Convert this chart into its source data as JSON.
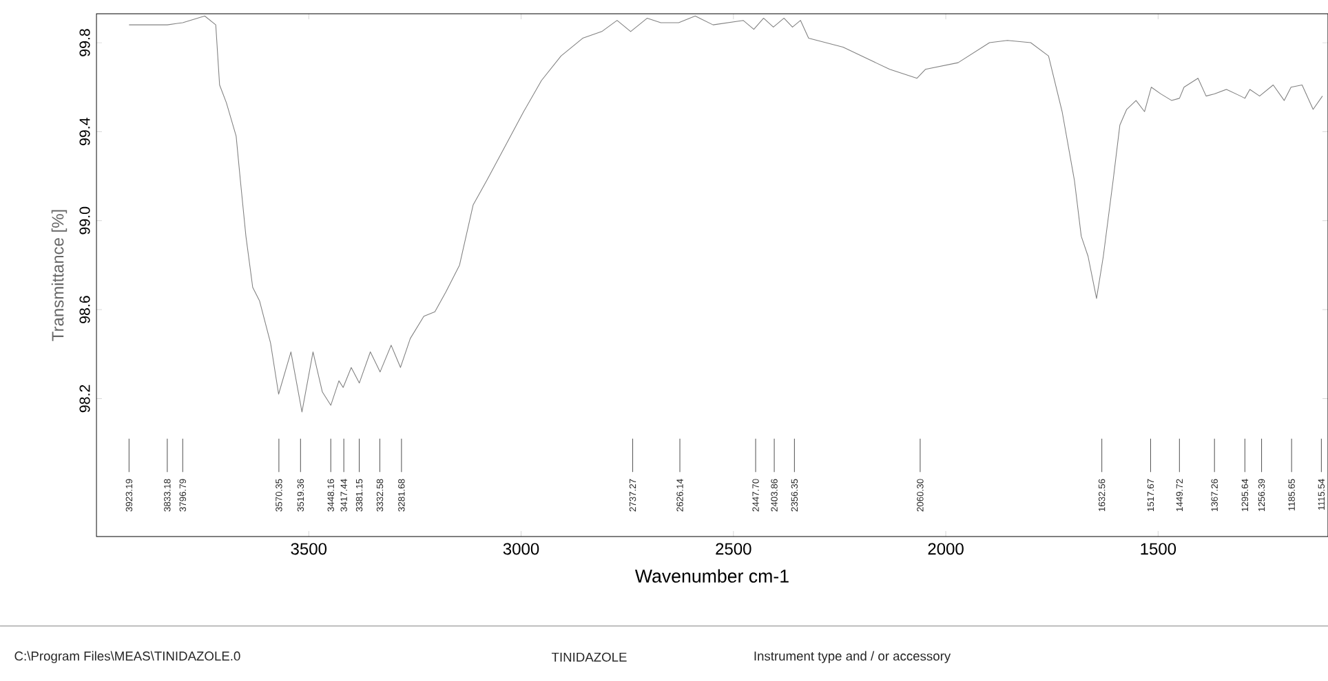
{
  "chart_data": {
    "type": "line",
    "xlabel": "Wavenumber cm-1",
    "ylabel": "Transmittance [%]",
    "xlim": [
      4000,
      1100
    ],
    "ylim": [
      97.58,
      99.93
    ],
    "xticks": [
      3500,
      3000,
      2500,
      2000,
      1500
    ],
    "yticks": [
      {
        "value": 98.2,
        "label": "98.2"
      },
      {
        "value": 98.6,
        "label": "98.6"
      },
      {
        "value": 99.0,
        "label": "99.0"
      },
      {
        "value": 99.4,
        "label": "99.4"
      },
      {
        "value": 99.8,
        "label": "99.8"
      }
    ],
    "x": [
      3923.19,
      3833.18,
      3796.79,
      3745,
      3719,
      3710,
      3694,
      3671,
      3661,
      3648,
      3632,
      3616,
      3590,
      3571,
      3542,
      3516,
      3490,
      3468,
      3448,
      3429,
      3419,
      3400,
      3381,
      3355,
      3332,
      3306,
      3284,
      3261,
      3229,
      3203,
      3177,
      3145,
      3113,
      3081,
      3036,
      2994,
      2952,
      2906,
      2855,
      2810,
      2774,
      2742,
      2703,
      2671,
      2629,
      2590,
      2548,
      2477,
      2452,
      2429,
      2406,
      2381,
      2361,
      2342,
      2323,
      2242,
      2132,
      2068,
      2048,
      1971,
      1897,
      1855,
      1800,
      1758,
      1726,
      1697,
      1681,
      1665,
      1645,
      1629,
      1606,
      1590,
      1574,
      1552,
      1532,
      1516,
      1494,
      1468,
      1449.72,
      1439,
      1406,
      1387,
      1367.26,
      1339,
      1306,
      1295.64,
      1284,
      1261,
      1229,
      1203,
      1187,
      1161,
      1135,
      1113
    ],
    "series": [
      {
        "color": "#808080",
        "values": [
          99.88,
          99.88,
          99.89,
          99.92,
          99.88,
          99.61,
          99.53,
          99.38,
          99.18,
          98.93,
          98.7,
          98.64,
          98.45,
          98.22,
          98.41,
          98.14,
          98.41,
          98.23,
          98.17,
          98.28,
          98.25,
          98.34,
          98.27,
          98.41,
          98.32,
          98.44,
          98.34,
          98.47,
          98.57,
          98.59,
          98.68,
          98.8,
          99.07,
          99.18,
          99.34,
          99.49,
          99.63,
          99.74,
          99.82,
          99.85,
          99.9,
          99.85,
          99.91,
          99.89,
          99.89,
          99.92,
          99.88,
          99.9,
          99.86,
          99.91,
          99.87,
          99.91,
          99.87,
          99.9,
          99.82,
          99.78,
          99.68,
          99.64,
          99.68,
          99.71,
          99.8,
          99.81,
          99.8,
          99.74,
          99.49,
          99.18,
          98.93,
          98.84,
          98.65,
          98.84,
          99.18,
          99.43,
          99.5,
          99.54,
          99.49,
          99.6,
          99.57,
          99.54,
          99.55,
          99.6,
          99.64,
          99.56,
          99.57,
          99.59,
          99.56,
          99.55,
          99.59,
          99.56,
          99.61,
          99.54,
          99.6,
          99.61,
          99.5,
          99.56
        ]
      }
    ],
    "line_style": "solid",
    "annotations": [
      {
        "text": "3923.19",
        "x": 3923.19
      },
      {
        "text": "3833.18",
        "x": 3833.18
      },
      {
        "text": "3796.79",
        "x": 3796.79
      },
      {
        "text": "3570.35",
        "x": 3570.35
      },
      {
        "text": "3519.36",
        "x": 3519.36
      },
      {
        "text": "3448.16",
        "x": 3448.16
      },
      {
        "text": "3417.44",
        "x": 3417.44
      },
      {
        "text": "3381.15",
        "x": 3381.15
      },
      {
        "text": "3332.58",
        "x": 3332.58
      },
      {
        "text": "3281.68",
        "x": 3281.68
      },
      {
        "text": "2737.27",
        "x": 2737.27
      },
      {
        "text": "2626.14",
        "x": 2626.14
      },
      {
        "text": "2447.70",
        "x": 2447.7
      },
      {
        "text": "2403.86",
        "x": 2403.86
      },
      {
        "text": "2356.35",
        "x": 2356.35
      },
      {
        "text": "2060.30",
        "x": 2060.3
      },
      {
        "text": "1632.56",
        "x": 1632.56
      },
      {
        "text": "1517.67",
        "x": 1517.67
      },
      {
        "text": "1449.72",
        "x": 1449.72
      },
      {
        "text": "1367.26",
        "x": 1367.26
      },
      {
        "text": "1295.64",
        "x": 1295.64
      },
      {
        "text": "1256.39",
        "x": 1256.39
      },
      {
        "text": "1185.65",
        "x": 1185.65
      },
      {
        "text": "1115.54",
        "x": 1115.54
      },
      "C:\\Program Files\\MEAS\\TINIDAZOLE.0",
      "TINIDAZOLE",
      "Instrument type and / or accessory"
    ]
  }
}
